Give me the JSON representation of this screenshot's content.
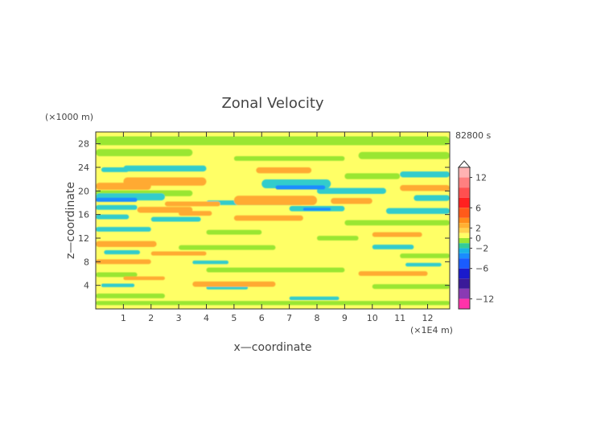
{
  "chart_data": {
    "type": "heatmap",
    "title": "Zonal Velocity",
    "xlabel": "x—coordinate",
    "ylabel": "z—coordinate",
    "x_unit": "(×1E4 m)",
    "y_unit": "(×1000 m)",
    "time_label": "82800 s",
    "xlim": [
      0,
      12.8
    ],
    "ylim": [
      0,
      30
    ],
    "x_ticks": [
      "1",
      "2",
      "3",
      "4",
      "5",
      "6",
      "7",
      "8",
      "9",
      "10",
      "11",
      "12"
    ],
    "y_ticks": [
      "4",
      "8",
      "12",
      "16",
      "20",
      "24",
      "28"
    ],
    "colorbar": {
      "range": [
        -14,
        14
      ],
      "tick_labels": [
        "12",
        "6",
        "2",
        "0",
        "−2",
        "−6",
        "−12"
      ],
      "tick_values": [
        12,
        6,
        2,
        0,
        -2,
        -6,
        -12
      ],
      "extend": "max"
    },
    "colors": {
      "base": "#ffff66",
      "slightly_negative": "#99e633",
      "moderately_negative": "#33cccc",
      "negative": "#1a8cff",
      "positive": "#ffaa33",
      "strongly_positive": "#e6803a"
    },
    "bands": [
      {
        "z": 28.5,
        "x": [
          0,
          12.8
        ],
        "thickness": 1.5,
        "level": -0.5
      },
      {
        "z": 26.5,
        "x": [
          0,
          3.5
        ],
        "thickness": 1.2,
        "level": -0.5
      },
      {
        "z": 26.0,
        "x": [
          9.5,
          12.8
        ],
        "thickness": 1.2,
        "level": -0.5
      },
      {
        "z": 25.5,
        "x": [
          5.0,
          9.0
        ],
        "thickness": 0.8,
        "level": -0.5
      },
      {
        "z": 23.8,
        "x": [
          1.0,
          4.0
        ],
        "thickness": 1.0,
        "level": -1.5
      },
      {
        "z": 23.6,
        "x": [
          0.2,
          1.2
        ],
        "thickness": 0.8,
        "level": -1.5
      },
      {
        "z": 23.5,
        "x": [
          5.8,
          7.8
        ],
        "thickness": 1.0,
        "level": 2.5
      },
      {
        "z": 22.8,
        "x": [
          11.0,
          12.8
        ],
        "thickness": 1.0,
        "level": -1.5
      },
      {
        "z": 22.5,
        "x": [
          9.0,
          11.0
        ],
        "thickness": 1.0,
        "level": -0.5
      },
      {
        "z": 21.6,
        "x": [
          1.0,
          4.0
        ],
        "thickness": 1.4,
        "level": 2.5
      },
      {
        "z": 21.2,
        "x": [
          6.0,
          8.5
        ],
        "thickness": 1.5,
        "level": -1.5
      },
      {
        "z": 20.8,
        "x": [
          0,
          2.0
        ],
        "thickness": 1.2,
        "level": 2.5
      },
      {
        "z": 20.6,
        "x": [
          6.5,
          8.3
        ],
        "thickness": 0.7,
        "level": -3.5
      },
      {
        "z": 20.5,
        "x": [
          11.0,
          12.8
        ],
        "thickness": 1.0,
        "level": 2.5
      },
      {
        "z": 20.0,
        "x": [
          8.0,
          10.5
        ],
        "thickness": 1.0,
        "level": -1.5
      },
      {
        "z": 19.6,
        "x": [
          0,
          3.5
        ],
        "thickness": 1.0,
        "level": -0.5
      },
      {
        "z": 19.0,
        "x": [
          0,
          2.5
        ],
        "thickness": 1.2,
        "level": -1.5
      },
      {
        "z": 18.8,
        "x": [
          11.5,
          12.8
        ],
        "thickness": 1.0,
        "level": -1.5
      },
      {
        "z": 18.5,
        "x": [
          0,
          1.5
        ],
        "thickness": 0.7,
        "level": -3.5
      },
      {
        "z": 18.4,
        "x": [
          5.0,
          8.0
        ],
        "thickness": 1.6,
        "level": 2.5
      },
      {
        "z": 18.3,
        "x": [
          8.5,
          10.0
        ],
        "thickness": 1.0,
        "level": 2.5
      },
      {
        "z": 18.0,
        "x": [
          4.0,
          7.5
        ],
        "thickness": 0.8,
        "level": -1.5
      },
      {
        "z": 17.8,
        "x": [
          2.5,
          4.5
        ],
        "thickness": 0.8,
        "level": 2.5
      },
      {
        "z": 17.2,
        "x": [
          0,
          1.5
        ],
        "thickness": 0.8,
        "level": -1.5
      },
      {
        "z": 17.0,
        "x": [
          7.0,
          9.0
        ],
        "thickness": 0.9,
        "level": -1.5
      },
      {
        "z": 16.9,
        "x": [
          7.5,
          8.5
        ],
        "thickness": 0.5,
        "level": -3.5
      },
      {
        "z": 16.8,
        "x": [
          1.5,
          3.5
        ],
        "thickness": 1.0,
        "level": 2.5
      },
      {
        "z": 16.6,
        "x": [
          10.5,
          12.8
        ],
        "thickness": 1.0,
        "level": -1.5
      },
      {
        "z": 16.2,
        "x": [
          3.0,
          4.2
        ],
        "thickness": 0.8,
        "level": 2.5
      },
      {
        "z": 15.6,
        "x": [
          0,
          1.2
        ],
        "thickness": 0.8,
        "level": -1.5
      },
      {
        "z": 15.4,
        "x": [
          5.0,
          7.5
        ],
        "thickness": 0.9,
        "level": 2.5
      },
      {
        "z": 15.2,
        "x": [
          2.0,
          3.8
        ],
        "thickness": 0.8,
        "level": -1.5
      },
      {
        "z": 14.6,
        "x": [
          9.0,
          12.8
        ],
        "thickness": 0.9,
        "level": -0.5
      },
      {
        "z": 13.5,
        "x": [
          0,
          2.0
        ],
        "thickness": 0.8,
        "level": -1.5
      },
      {
        "z": 13.0,
        "x": [
          4.0,
          6.0
        ],
        "thickness": 0.8,
        "level": -0.5
      },
      {
        "z": 12.6,
        "x": [
          10.0,
          11.8
        ],
        "thickness": 0.8,
        "level": 2.5
      },
      {
        "z": 12.0,
        "x": [
          8.0,
          9.5
        ],
        "thickness": 0.8,
        "level": -0.5
      },
      {
        "z": 11.0,
        "x": [
          0,
          2.2
        ],
        "thickness": 1.0,
        "level": 2.5
      },
      {
        "z": 10.5,
        "x": [
          10.0,
          11.5
        ],
        "thickness": 0.8,
        "level": -1.5
      },
      {
        "z": 10.4,
        "x": [
          3.0,
          6.5
        ],
        "thickness": 0.8,
        "level": -0.5
      },
      {
        "z": 9.6,
        "x": [
          0.3,
          1.6
        ],
        "thickness": 0.7,
        "level": -1.5
      },
      {
        "z": 9.4,
        "x": [
          2.0,
          4.0
        ],
        "thickness": 0.7,
        "level": 2.5
      },
      {
        "z": 9.0,
        "x": [
          11.0,
          12.8
        ],
        "thickness": 0.8,
        "level": -0.5
      },
      {
        "z": 8.0,
        "x": [
          0,
          2.0
        ],
        "thickness": 0.8,
        "level": 2.5
      },
      {
        "z": 7.9,
        "x": [
          3.5,
          4.8
        ],
        "thickness": 0.6,
        "level": -1.5
      },
      {
        "z": 7.5,
        "x": [
          11.2,
          12.5
        ],
        "thickness": 0.6,
        "level": -1.5
      },
      {
        "z": 6.6,
        "x": [
          4.0,
          9.0
        ],
        "thickness": 0.8,
        "level": -0.5
      },
      {
        "z": 6.0,
        "x": [
          9.5,
          12.0
        ],
        "thickness": 0.8,
        "level": 2.5
      },
      {
        "z": 5.8,
        "x": [
          0,
          1.5
        ],
        "thickness": 0.8,
        "level": -0.5
      },
      {
        "z": 5.2,
        "x": [
          1.0,
          2.5
        ],
        "thickness": 0.6,
        "level": 2.5
      },
      {
        "z": 4.2,
        "x": [
          3.5,
          6.5
        ],
        "thickness": 0.9,
        "level": 2.5
      },
      {
        "z": 4.0,
        "x": [
          0.2,
          1.4
        ],
        "thickness": 0.6,
        "level": -1.5
      },
      {
        "z": 3.8,
        "x": [
          10.0,
          12.8
        ],
        "thickness": 0.8,
        "level": -0.5
      },
      {
        "z": 3.6,
        "x": [
          4.0,
          5.5
        ],
        "thickness": 0.6,
        "level": -1.5
      },
      {
        "z": 2.2,
        "x": [
          0,
          2.5
        ],
        "thickness": 0.8,
        "level": -0.5
      },
      {
        "z": 1.8,
        "x": [
          7.0,
          8.8
        ],
        "thickness": 0.6,
        "level": -1.5
      },
      {
        "z": 1.0,
        "x": [
          0,
          12.8
        ],
        "thickness": 0.7,
        "level": -0.5
      }
    ]
  }
}
